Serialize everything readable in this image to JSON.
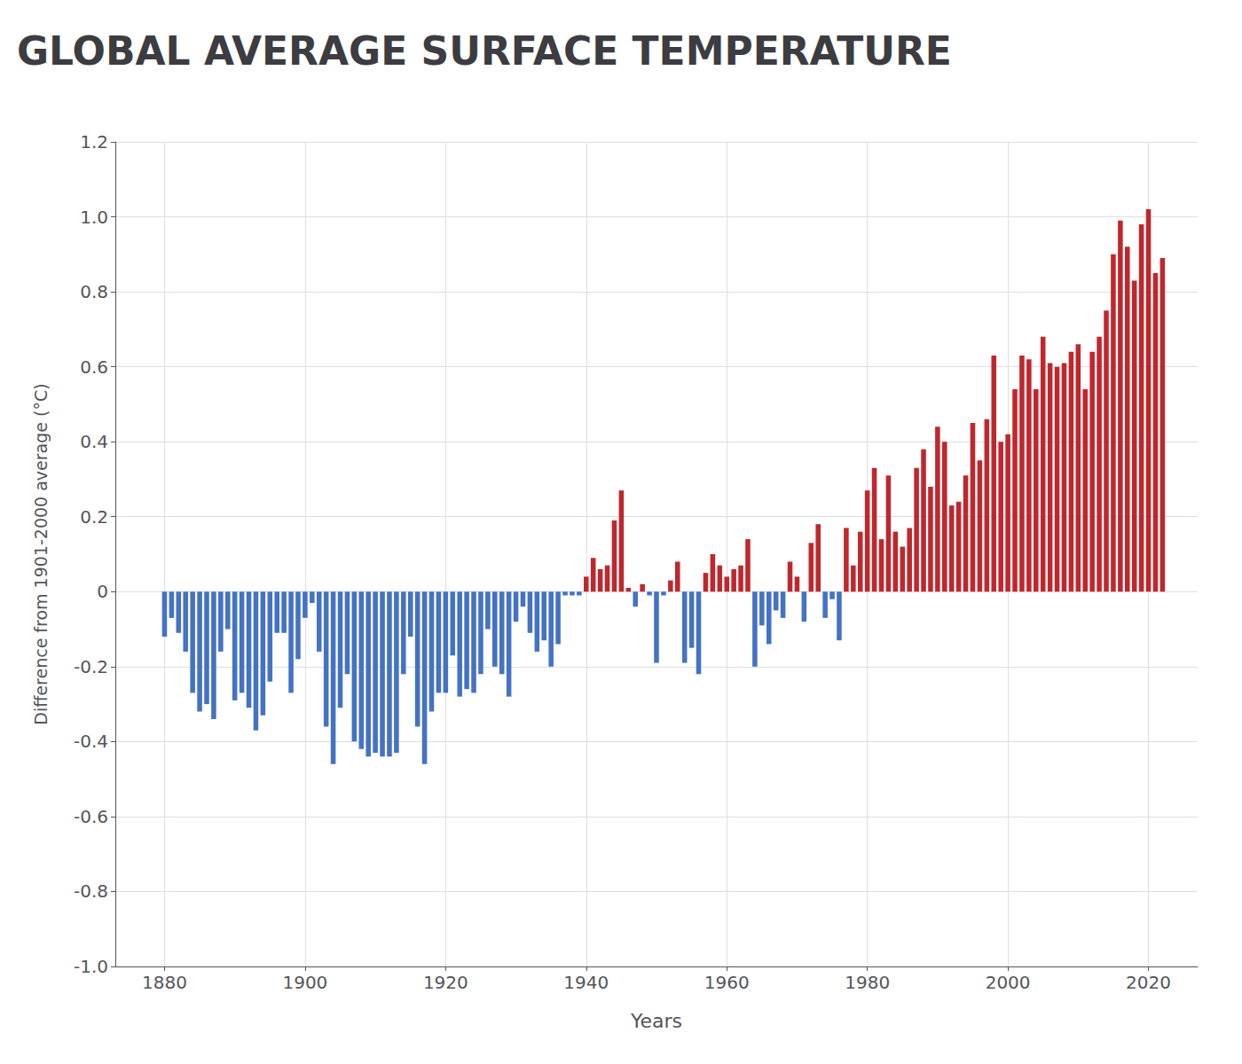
{
  "chart_data": {
    "type": "bar",
    "title": "GLOBAL AVERAGE SURFACE TEMPERATURE",
    "xlabel": "Years",
    "ylabel": "Difference from 1901-2000 average (°C)",
    "x": [
      1880,
      1881,
      1882,
      1883,
      1884,
      1885,
      1886,
      1887,
      1888,
      1889,
      1890,
      1891,
      1892,
      1893,
      1894,
      1895,
      1896,
      1897,
      1898,
      1899,
      1900,
      1901,
      1902,
      1903,
      1904,
      1905,
      1906,
      1907,
      1908,
      1909,
      1910,
      1911,
      1912,
      1913,
      1914,
      1915,
      1916,
      1917,
      1918,
      1919,
      1920,
      1921,
      1922,
      1923,
      1924,
      1925,
      1926,
      1927,
      1928,
      1929,
      1930,
      1931,
      1932,
      1933,
      1934,
      1935,
      1936,
      1937,
      1938,
      1939,
      1940,
      1941,
      1942,
      1943,
      1944,
      1945,
      1946,
      1947,
      1948,
      1949,
      1950,
      1951,
      1952,
      1953,
      1954,
      1955,
      1956,
      1957,
      1958,
      1959,
      1960,
      1961,
      1962,
      1963,
      1964,
      1965,
      1966,
      1967,
      1968,
      1969,
      1970,
      1971,
      1972,
      1973,
      1974,
      1975,
      1976,
      1977,
      1978,
      1979,
      1980,
      1981,
      1982,
      1983,
      1984,
      1985,
      1986,
      1987,
      1988,
      1989,
      1990,
      1991,
      1992,
      1993,
      1994,
      1995,
      1996,
      1997,
      1998,
      1999,
      2000,
      2001,
      2002,
      2003,
      2004,
      2005,
      2006,
      2007,
      2008,
      2009,
      2010,
      2011,
      2012,
      2013,
      2014,
      2015,
      2016,
      2017,
      2018,
      2019,
      2020,
      2021,
      2022
    ],
    "values": [
      -0.12,
      -0.07,
      -0.11,
      -0.16,
      -0.27,
      -0.32,
      -0.3,
      -0.34,
      -0.16,
      -0.1,
      -0.29,
      -0.27,
      -0.31,
      -0.37,
      -0.33,
      -0.24,
      -0.11,
      -0.11,
      -0.27,
      -0.18,
      -0.07,
      -0.03,
      -0.16,
      -0.36,
      -0.46,
      -0.31,
      -0.22,
      -0.4,
      -0.42,
      -0.44,
      -0.43,
      -0.44,
      -0.44,
      -0.43,
      -0.22,
      -0.12,
      -0.36,
      -0.46,
      -0.32,
      -0.27,
      -0.27,
      -0.17,
      -0.28,
      -0.26,
      -0.27,
      -0.22,
      -0.1,
      -0.2,
      -0.22,
      -0.28,
      -0.08,
      -0.04,
      -0.11,
      -0.16,
      -0.13,
      -0.2,
      -0.14,
      -0.01,
      -0.01,
      -0.01,
      0.04,
      0.09,
      0.06,
      0.07,
      0.19,
      0.27,
      0.01,
      -0.04,
      0.02,
      -0.01,
      -0.19,
      -0.01,
      0.03,
      0.08,
      -0.19,
      -0.15,
      -0.22,
      0.05,
      0.1,
      0.07,
      0.04,
      0.06,
      0.07,
      0.14,
      -0.2,
      -0.09,
      -0.14,
      -0.05,
      -0.07,
      0.08,
      0.04,
      -0.08,
      0.13,
      0.18,
      -0.07,
      -0.02,
      -0.13,
      0.17,
      0.07,
      0.16,
      0.27,
      0.33,
      0.14,
      0.31,
      0.16,
      0.12,
      0.17,
      0.33,
      0.38,
      0.28,
      0.44,
      0.4,
      0.23,
      0.24,
      0.31,
      0.45,
      0.35,
      0.46,
      0.63,
      0.4,
      0.42,
      0.54,
      0.63,
      0.62,
      0.54,
      0.68,
      0.61,
      0.6,
      0.61,
      0.64,
      0.66,
      0.54,
      0.64,
      0.68,
      0.75,
      0.9,
      0.99,
      0.92,
      0.83,
      0.98,
      1.02,
      0.85,
      0.89
    ],
    "colors": [
      "#4472c4",
      "#4472c4",
      "#4472c4",
      "#4472c4",
      "#4472c4",
      "#4472c4",
      "#4472c4",
      "#4472c4",
      "#4472c4",
      "#4472c4",
      "#4472c4",
      "#4472c4",
      "#4472c4",
      "#4472c4",
      "#4472c4",
      "#4472c4",
      "#4472c4",
      "#4472c4",
      "#4472c4",
      "#4472c4",
      "#4472c4",
      "#4472c4",
      "#4472c4",
      "#4472c4",
      "#4472c4",
      "#4472c4",
      "#4472c4",
      "#4472c4",
      "#4472c4",
      "#4472c4",
      "#4472c4",
      "#4472c4",
      "#4472c4",
      "#4472c4",
      "#4472c4",
      "#4472c4",
      "#4472c4",
      "#4472c4",
      "#4472c4",
      "#4472c4",
      "#4472c4",
      "#4472c4",
      "#4472c4",
      "#4472c4",
      "#4472c4",
      "#4472c4",
      "#4472c4",
      "#4472c4",
      "#4472c4",
      "#4472c4",
      "#4472c4",
      "#4472c4",
      "#4472c4",
      "#4472c4",
      "#4472c4",
      "#4472c4",
      "#4472c4",
      "#4472c4",
      "#4472c4",
      "#4472c4",
      "#c0272d",
      "#c0272d",
      "#c0272d",
      "#c0272d",
      "#c0272d",
      "#c0272d",
      "#c0272d",
      "#4472c4",
      "#c0272d",
      "#4472c4",
      "#4472c4",
      "#4472c4",
      "#c0272d",
      "#c0272d",
      "#4472c4",
      "#4472c4",
      "#4472c4",
      "#c0272d",
      "#c0272d",
      "#c0272d",
      "#c0272d",
      "#c0272d",
      "#c0272d",
      "#c0272d",
      "#4472c4",
      "#4472c4",
      "#4472c4",
      "#4472c4",
      "#4472c4",
      "#c0272d",
      "#c0272d",
      "#4472c4",
      "#c0272d",
      "#c0272d",
      "#4472c4",
      "#4472c4",
      "#4472c4",
      "#c0272d",
      "#c0272d",
      "#c0272d",
      "#c0272d",
      "#c0272d",
      "#c0272d",
      "#c0272d",
      "#c0272d",
      "#c0272d",
      "#c0272d",
      "#c0272d",
      "#c0272d",
      "#c0272d",
      "#c0272d",
      "#c0272d",
      "#c0272d",
      "#c0272d",
      "#c0272d",
      "#c0272d",
      "#c0272d",
      "#c0272d",
      "#c0272d",
      "#c0272d",
      "#c0272d",
      "#c0272d",
      "#c0272d",
      "#c0272d",
      "#c0272d",
      "#c0272d",
      "#c0272d",
      "#c0272d",
      "#c0272d",
      "#c0272d",
      "#c0272d",
      "#c0272d",
      "#c0272d",
      "#c0272d",
      "#c0272d",
      "#c0272d",
      "#c0272d",
      "#c0272d",
      "#c0272d",
      "#c0272d",
      "#c0272d",
      "#c0272d",
      "#c0272d"
    ],
    "xlim": [
      1873,
      2027
    ],
    "xticks": [
      1880,
      1900,
      1920,
      1940,
      1960,
      1980,
      2000,
      2020
    ],
    "ylim": [
      -1.0,
      1.2
    ],
    "yticks": [
      {
        "value": -1.0,
        "label": "-1.0"
      },
      -0.8,
      -0.6,
      -0.4,
      -0.2,
      0,
      0.2,
      0.4,
      0.6,
      0.8,
      {
        "value": 1.0,
        "label": "1.0"
      },
      1.2
    ],
    "grid": true
  }
}
